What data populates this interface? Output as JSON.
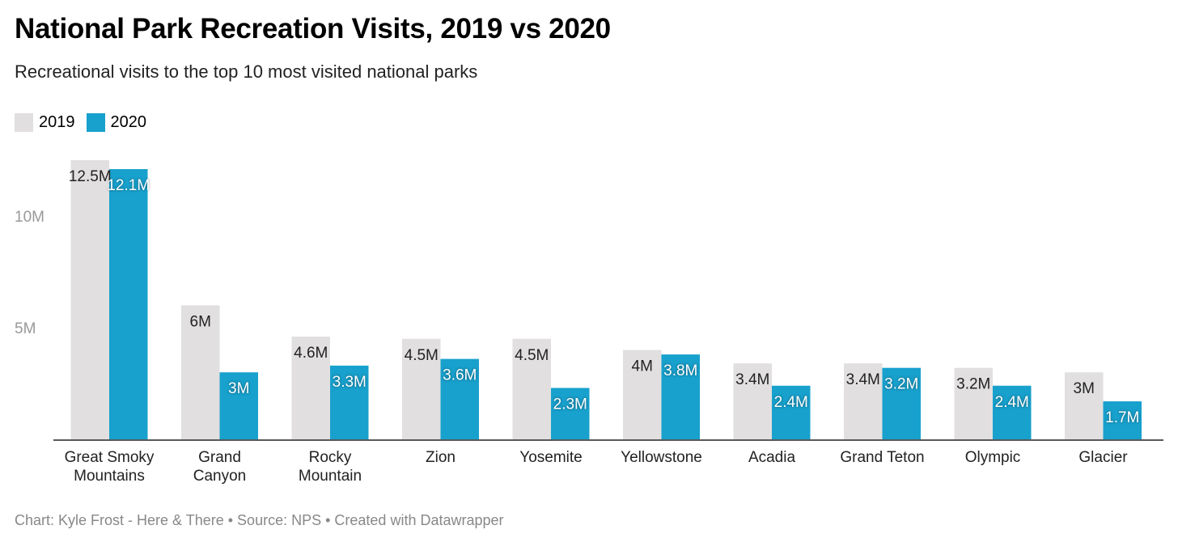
{
  "title": "National Park Recreation Visits, 2019 vs 2020",
  "subtitle": "Recreational visits to the top 10 most visited national parks",
  "footer": "Chart: Kyle Frost - Here & There • Source: NPS • Created with Datawrapper",
  "chart_data": {
    "type": "bar",
    "title": "National Park Recreation Visits, 2019 vs 2020",
    "subtitle": "Recreational visits to the top 10 most visited national parks",
    "categories": [
      "Great Smoky Mountains",
      "Grand Canyon",
      "Rocky Mountain",
      "Zion",
      "Yosemite",
      "Yellowstone",
      "Acadia",
      "Grand Teton",
      "Olympic",
      "Glacier"
    ],
    "category_lines": [
      [
        "Great Smoky",
        "Mountains"
      ],
      [
        "Grand",
        "Canyon"
      ],
      [
        "Rocky",
        "Mountain"
      ],
      [
        "Zion"
      ],
      [
        "Yosemite"
      ],
      [
        "Yellowstone"
      ],
      [
        "Acadia"
      ],
      [
        "Grand Teton"
      ],
      [
        "Olympic"
      ],
      [
        "Glacier"
      ]
    ],
    "unit": "M",
    "series": [
      {
        "name": "2019",
        "color": "#e1dfdf",
        "label_color": "#222222",
        "values": [
          12.5,
          6,
          4.6,
          4.5,
          4.5,
          4,
          3.4,
          3.4,
          3.2,
          3
        ]
      },
      {
        "name": "2020",
        "color": "#18a1cd",
        "label_color": "#ffffff",
        "values": [
          12.1,
          3,
          3.3,
          3.6,
          2.3,
          3.8,
          2.4,
          3.2,
          2.4,
          1.7
        ]
      }
    ],
    "yticks": [
      5,
      10
    ],
    "ytick_labels": [
      "5M",
      "10M"
    ],
    "ylim": [
      0,
      12.5
    ],
    "grid": false,
    "legend_position": "top-left"
  }
}
